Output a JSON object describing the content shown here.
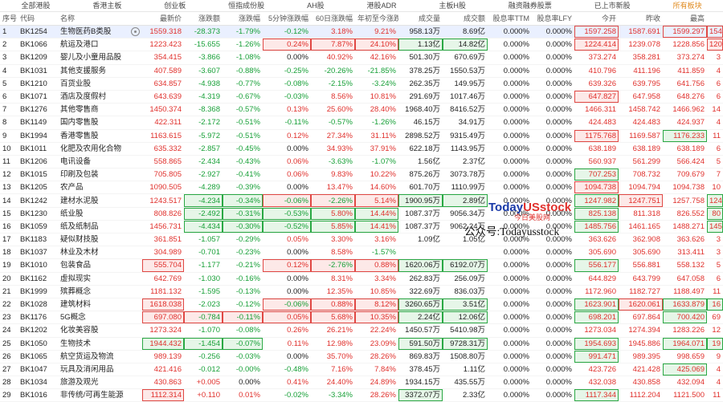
{
  "tabs": [
    "全部港股",
    "香港主板",
    "创业板",
    "恒指成份股",
    "AH股",
    "港股ADR",
    "主板H股",
    "融资融券股票",
    "已上市新股",
    "所有板块"
  ],
  "active_tab_index": 9,
  "columns": [
    "序号",
    "代码",
    "名称",
    "最新价",
    "涨跌额",
    "涨跌幅",
    "5分钟涨跌幅",
    "60日涨跌幅",
    "年初至今涨跌",
    "成交量",
    "成交额",
    "股息率TTM",
    "股息率LFY",
    "今开",
    "昨收",
    "最高",
    ""
  ],
  "rows": [
    {
      "n": "1",
      "code": "BK1254",
      "name": "生物医药B类股",
      "eye": true,
      "price": "1559.318",
      "chg": "-28.373",
      "pct": "-1.79%",
      "m5": "-0.12%",
      "d60": "3.18%",
      "ytd": "9.21%",
      "vol": "958.13万",
      "amt": "8.69亿",
      "dy1": "0.000%",
      "dy2": "0.000%",
      "open": "1597.258",
      "prev": "1587.691",
      "high": "1599.297",
      "x": "154"
    },
    {
      "n": "2",
      "code": "BK1066",
      "name": "航运及港口",
      "price": "1223.423",
      "chg": "-15.655",
      "pct": "-1.26%",
      "m5": "0.24%",
      "d60": "7.87%",
      "ytd": "24.10%",
      "vol": "1.13亿",
      "amt": "14.82亿",
      "dy1": "0.000%",
      "dy2": "0.000%",
      "open": "1224.414",
      "prev": "1239.078",
      "high": "1228.856",
      "x": "120"
    },
    {
      "n": "3",
      "code": "BK1209",
      "name": "婴儿及小童用品股",
      "price": "354.415",
      "chg": "-3.866",
      "pct": "-1.08%",
      "m5": "0.00%",
      "d60": "40.92%",
      "ytd": "42.16%",
      "vol": "501.30万",
      "amt": "670.69万",
      "dy1": "0.000%",
      "dy2": "0.000%",
      "open": "373.274",
      "prev": "358.281",
      "high": "373.274",
      "x": "3"
    },
    {
      "n": "4",
      "code": "BK1031",
      "name": "其他支援服务",
      "price": "407.589",
      "chg": "-3.607",
      "pct": "-0.88%",
      "m5": "-0.25%",
      "d60": "-20.26%",
      "ytd": "-21.85%",
      "vol": "378.25万",
      "amt": "1550.53万",
      "dy1": "0.000%",
      "dy2": "0.000%",
      "open": "410.796",
      "prev": "411.196",
      "high": "411.859",
      "x": "4"
    },
    {
      "n": "5",
      "code": "BK1210",
      "name": "百货业股",
      "price": "634.857",
      "chg": "-4.938",
      "pct": "-0.77%",
      "m5": "-0.08%",
      "d60": "-2.15%",
      "ytd": "-3.24%",
      "vol": "262.35万",
      "amt": "149.95万",
      "dy1": "0.000%",
      "dy2": "0.000%",
      "open": "639.326",
      "prev": "639.795",
      "high": "641.756",
      "x": "6"
    },
    {
      "n": "6",
      "code": "BK1071",
      "name": "酒店及度假村",
      "price": "643.639",
      "chg": "-4.319",
      "pct": "-0.67%",
      "m5": "-0.03%",
      "d60": "8.56%",
      "ytd": "10.81%",
      "vol": "291.69万",
      "amt": "1017.46万",
      "dy1": "0.000%",
      "dy2": "0.000%",
      "open": "647.827",
      "prev": "647.958",
      "high": "648.276",
      "x": "6"
    },
    {
      "n": "7",
      "code": "BK1276",
      "name": "其他零售商",
      "price": "1450.374",
      "chg": "-8.368",
      "pct": "-0.57%",
      "m5": "0.13%",
      "d60": "25.60%",
      "ytd": "28.40%",
      "vol": "1968.40万",
      "amt": "8416.52万",
      "dy1": "0.000%",
      "dy2": "0.000%",
      "open": "1466.311",
      "prev": "1458.742",
      "high": "1466.962",
      "x": "14"
    },
    {
      "n": "8",
      "code": "BK1149",
      "name": "国内零售股",
      "price": "422.311",
      "chg": "-2.172",
      "pct": "-0.51%",
      "m5": "-0.11%",
      "d60": "-0.57%",
      "ytd": "-1.26%",
      "vol": "46.15万",
      "amt": "34.91万",
      "dy1": "0.000%",
      "dy2": "0.000%",
      "open": "424.483",
      "prev": "424.483",
      "high": "424.937",
      "x": "4"
    },
    {
      "n": "9",
      "code": "BK1994",
      "name": "香港零售股",
      "price": "1163.615",
      "chg": "-5.972",
      "pct": "-0.51%",
      "m5": "0.12%",
      "d60": "27.34%",
      "ytd": "31.11%",
      "vol": "2898.52万",
      "amt": "9315.49万",
      "dy1": "0.000%",
      "dy2": "0.000%",
      "open": "1175.768",
      "prev": "1169.587",
      "high": "1176.233",
      "x": "11"
    },
    {
      "n": "10",
      "code": "BK1011",
      "name": "化肥及农用化合物",
      "price": "635.332",
      "chg": "-2.857",
      "pct": "-0.45%",
      "m5": "0.00%",
      "d60": "34.93%",
      "ytd": "37.91%",
      "vol": "622.18万",
      "amt": "1143.95万",
      "dy1": "0.000%",
      "dy2": "0.000%",
      "open": "638.189",
      "prev": "638.189",
      "high": "638.189",
      "x": "6"
    },
    {
      "n": "11",
      "code": "BK1206",
      "name": "电讯设备",
      "price": "558.865",
      "chg": "-2.434",
      "pct": "-0.43%",
      "m5": "0.06%",
      "d60": "-3.63%",
      "ytd": "-1.07%",
      "vol": "1.56亿",
      "amt": "2.37亿",
      "dy1": "0.000%",
      "dy2": "0.000%",
      "open": "560.937",
      "prev": "561.299",
      "high": "566.424",
      "x": "5"
    },
    {
      "n": "12",
      "code": "BK1015",
      "name": "印刷及包装",
      "price": "705.805",
      "chg": "-2.927",
      "pct": "-0.41%",
      "m5": "0.06%",
      "d60": "9.83%",
      "ytd": "10.22%",
      "vol": "875.26万",
      "amt": "3073.78万",
      "dy1": "0.000%",
      "dy2": "0.000%",
      "open": "707.253",
      "prev": "708.732",
      "high": "709.679",
      "x": "7"
    },
    {
      "n": "13",
      "code": "BK1205",
      "name": "农产品",
      "price": "1090.505",
      "chg": "-4.289",
      "pct": "-0.39%",
      "m5": "0.00%",
      "d60": "13.47%",
      "ytd": "14.60%",
      "vol": "601.70万",
      "amt": "1110.99万",
      "dy1": "0.000%",
      "dy2": "0.000%",
      "open": "1094.738",
      "prev": "1094.794",
      "high": "1094.738",
      "x": "10"
    },
    {
      "n": "14",
      "code": "BK1242",
      "name": "建材水泥股",
      "price": "1243.517",
      "chg": "-4.234",
      "pct": "-0.34%",
      "m5": "-0.06%",
      "d60": "-2.26%",
      "ytd": "5.14%",
      "vol": "1900.95万",
      "amt": "2.89亿",
      "dy1": "0.000%",
      "dy2": "0.000%",
      "open": "1247.982",
      "prev": "1247.751",
      "high": "1257.758",
      "x": "124"
    },
    {
      "n": "15",
      "code": "BK1230",
      "name": "纸业股",
      "price": "808.826",
      "chg": "-2.492",
      "pct": "-0.31%",
      "m5": "-0.53%",
      "d60": "5.80%",
      "ytd": "14.44%",
      "vol": "1087.37万",
      "amt": "9056.34万",
      "dy1": "0.000%",
      "dy2": "0.000%",
      "open": "825.138",
      "prev": "811.318",
      "high": "826.552",
      "x": "80"
    },
    {
      "n": "16",
      "code": "BK1059",
      "name": "纸及纸制品",
      "price": "1456.731",
      "chg": "-4.434",
      "pct": "-0.30%",
      "m5": "-0.52%",
      "d60": "5.85%",
      "ytd": "14.41%",
      "vol": "1087.37万",
      "amt": "9062.24万",
      "dy1": "0.000%",
      "dy2": "0.000%",
      "open": "1485.756",
      "prev": "1461.165",
      "high": "1488.271",
      "x": "145"
    },
    {
      "n": "17",
      "code": "BK1183",
      "name": "疑似财技股",
      "price": "361.851",
      "chg": "-1.057",
      "pct": "-0.29%",
      "m5": "0.05%",
      "d60": "3.30%",
      "ytd": "3.16%",
      "vol": "1.09亿",
      "amt": "1.05亿",
      "dy1": "0.000%",
      "dy2": "0.000%",
      "open": "363.626",
      "prev": "362.908",
      "high": "363.626",
      "x": "3"
    },
    {
      "n": "18",
      "code": "BK1037",
      "name": "林业及木材",
      "price": "304.989",
      "chg": "-0.701",
      "pct": "-0.23%",
      "m5": "0.00%",
      "d60": "8.58%",
      "ytd": "-1.57%",
      "vol": "",
      "amt": "",
      "dy1": "0.000%",
      "dy2": "0.000%",
      "open": "305.690",
      "prev": "305.690",
      "high": "313.411",
      "x": "3"
    },
    {
      "n": "19",
      "code": "BK1010",
      "name": "包装食品",
      "price": "555.704",
      "chg": "-1.177",
      "pct": "-0.21%",
      "m5": "0.12%",
      "d60": "-2.76%",
      "ytd": "0.88%",
      "vol": "1620.06万",
      "amt": "6192.07万",
      "dy1": "0.000%",
      "dy2": "0.000%",
      "open": "556.177",
      "prev": "556.881",
      "high": "558.132",
      "x": "5"
    },
    {
      "n": "20",
      "code": "BK1162",
      "name": "虚拟现实",
      "price": "642.769",
      "chg": "-1.030",
      "pct": "-0.16%",
      "m5": "0.00%",
      "d60": "8.31%",
      "ytd": "3.34%",
      "vol": "262.83万",
      "amt": "256.09万",
      "dy1": "0.000%",
      "dy2": "0.000%",
      "open": "644.829",
      "prev": "643.799",
      "high": "647.058",
      "x": "6"
    },
    {
      "n": "21",
      "code": "BK1999",
      "name": "殡葬概念",
      "price": "1181.132",
      "chg": "-1.595",
      "pct": "-0.13%",
      "m5": "0.00%",
      "d60": "12.35%",
      "ytd": "10.85%",
      "vol": "322.69万",
      "amt": "836.03万",
      "dy1": "0.000%",
      "dy2": "0.000%",
      "open": "1172.960",
      "prev": "1182.727",
      "high": "1188.497",
      "x": "11"
    },
    {
      "n": "22",
      "code": "BK1028",
      "name": "建筑材料",
      "price": "1618.038",
      "chg": "-2.023",
      "pct": "-0.12%",
      "m5": "-0.06%",
      "d60": "0.88%",
      "ytd": "8.12%",
      "vol": "3260.65万",
      "amt": "3.51亿",
      "dy1": "0.000%",
      "dy2": "0.000%",
      "open": "1623.901",
      "prev": "1620.061",
      "high": "1633.879",
      "x": "16"
    },
    {
      "n": "23",
      "code": "BK1176",
      "name": "5G概念",
      "price": "697.080",
      "chg": "-0.784",
      "pct": "-0.11%",
      "m5": "0.05%",
      "d60": "5.68%",
      "ytd": "10.35%",
      "vol": "2.24亿",
      "amt": "12.06亿",
      "dy1": "0.000%",
      "dy2": "0.000%",
      "open": "698.201",
      "prev": "697.864",
      "high": "700.420",
      "x": "69"
    },
    {
      "n": "24",
      "code": "BK1202",
      "name": "化妆美容股",
      "price": "1273.324",
      "chg": "-1.070",
      "pct": "-0.08%",
      "m5": "0.26%",
      "d60": "26.21%",
      "ytd": "22.24%",
      "vol": "1450.57万",
      "amt": "5410.98万",
      "dy1": "0.000%",
      "dy2": "0.000%",
      "open": "1273.034",
      "prev": "1274.394",
      "high": "1283.226",
      "x": "12"
    },
    {
      "n": "25",
      "code": "BK1050",
      "name": "生物技术",
      "price": "1944.432",
      "chg": "-1.454",
      "pct": "-0.07%",
      "m5": "0.11%",
      "d60": "12.98%",
      "ytd": "23.09%",
      "vol": "591.50万",
      "amt": "9728.31万",
      "dy1": "0.000%",
      "dy2": "0.000%",
      "open": "1954.693",
      "prev": "1945.886",
      "high": "1964.071",
      "x": "19"
    },
    {
      "n": "26",
      "code": "BK1065",
      "name": "航空货运及物流",
      "price": "989.139",
      "chg": "-0.256",
      "pct": "-0.03%",
      "m5": "0.00%",
      "d60": "35.70%",
      "ytd": "28.26%",
      "vol": "869.83万",
      "amt": "1508.80万",
      "dy1": "0.000%",
      "dy2": "0.000%",
      "open": "991.471",
      "prev": "989.395",
      "high": "998.659",
      "x": "9"
    },
    {
      "n": "27",
      "code": "BK1047",
      "name": "玩具及消闲用品",
      "price": "421.416",
      "chg": "-0.012",
      "pct": "-0.00%",
      "m5": "-0.48%",
      "d60": "7.16%",
      "ytd": "7.84%",
      "vol": "378.45万",
      "amt": "1.11亿",
      "dy1": "0.000%",
      "dy2": "0.000%",
      "open": "423.726",
      "prev": "421.428",
      "high": "425.069",
      "x": "4"
    },
    {
      "n": "28",
      "code": "BK1034",
      "name": "旅游及观光",
      "price": "430.863",
      "chg": "+0.005",
      "pct": "0.00%",
      "m5": "0.41%",
      "d60": "24.40%",
      "ytd": "24.89%",
      "vol": "1934.15万",
      "amt": "435.55万",
      "dy1": "0.000%",
      "dy2": "0.000%",
      "open": "432.038",
      "prev": "430.858",
      "high": "432.094",
      "x": "4"
    },
    {
      "n": "29",
      "code": "BK1016",
      "name": "非传统/可再生能源",
      "price": "1112.314",
      "chg": "+0.110",
      "pct": "0.01%",
      "m5": "-0.02%",
      "d60": "-3.34%",
      "ytd": "28.26%",
      "vol": "3372.07万",
      "amt": "2.33亿",
      "dy1": "0.000%",
      "dy2": "0.000%",
      "open": "1117.344",
      "prev": "1112.204",
      "high": "1121.500",
      "x": "11"
    }
  ],
  "watermark": {
    "brand_a": "Today",
    "brand_b": "USstock",
    "sub": "今日美股网",
    "line": "公众号:Todayusstock"
  },
  "colors": {
    "up": "#e0302c",
    "down": "#18a038",
    "accent": "#e08a1e",
    "selected_row": "#eaf0ff"
  }
}
